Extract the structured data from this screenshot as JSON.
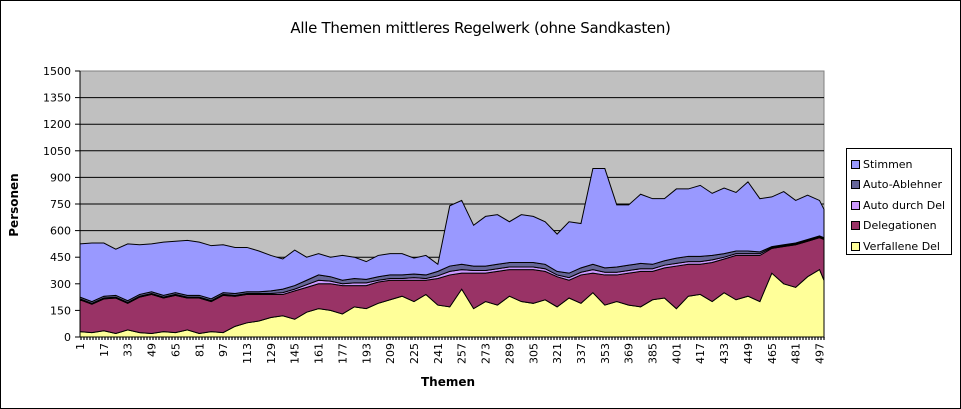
{
  "chart_data": {
    "type": "area",
    "stacked": true,
    "title": "Alle Themen mittleres Regelwerk (ohne Sandkasten)",
    "xlabel": "Themen",
    "ylabel": "Personen",
    "ylim": [
      0,
      1500
    ],
    "yticks": [
      0,
      150,
      300,
      450,
      600,
      750,
      900,
      1050,
      1200,
      1350,
      1500
    ],
    "xticks": [
      1,
      17,
      33,
      49,
      65,
      81,
      97,
      113,
      129,
      145,
      161,
      177,
      193,
      209,
      225,
      241,
      257,
      273,
      289,
      305,
      321,
      337,
      353,
      369,
      385,
      401,
      417,
      433,
      449,
      465,
      481,
      497
    ],
    "xrange": [
      1,
      500
    ],
    "grid": true,
    "plot_background": "#c0c0c0",
    "legend_position": "right",
    "x": [
      1,
      9,
      17,
      25,
      33,
      41,
      49,
      57,
      65,
      73,
      81,
      89,
      97,
      105,
      113,
      121,
      129,
      137,
      145,
      153,
      161,
      169,
      177,
      185,
      193,
      201,
      209,
      217,
      225,
      233,
      241,
      249,
      257,
      265,
      273,
      281,
      289,
      297,
      305,
      313,
      321,
      329,
      337,
      345,
      353,
      361,
      369,
      377,
      385,
      393,
      401,
      409,
      417,
      425,
      433,
      441,
      449,
      457,
      465,
      473,
      481,
      489,
      497,
      500
    ],
    "series": [
      {
        "name": "Verfallene Del",
        "color": "#ffff99",
        "values": [
          30,
          25,
          35,
          20,
          40,
          25,
          20,
          30,
          25,
          40,
          20,
          30,
          25,
          60,
          80,
          90,
          110,
          120,
          100,
          140,
          160,
          150,
          130,
          170,
          160,
          190,
          210,
          230,
          200,
          240,
          180,
          170,
          270,
          160,
          200,
          180,
          230,
          200,
          190,
          210,
          170,
          220,
          190,
          250,
          180,
          200,
          180,
          170,
          210,
          220,
          160,
          230,
          240,
          200,
          250,
          210,
          230,
          200,
          360,
          300,
          280,
          340,
          380,
          320
        ]
      },
      {
        "name": "Delegationen",
        "color": "#993366",
        "values": [
          180,
          160,
          180,
          200,
          150,
          200,
          220,
          190,
          210,
          180,
          200,
          170,
          210,
          170,
          160,
          150,
          130,
          120,
          160,
          140,
          140,
          150,
          160,
          120,
          130,
          120,
          110,
          90,
          120,
          80,
          150,
          180,
          90,
          200,
          160,
          190,
          150,
          180,
          190,
          160,
          170,
          100,
          160,
          110,
          170,
          150,
          180,
          200,
          160,
          170,
          240,
          180,
          170,
          220,
          190,
          250,
          230,
          260,
          140,
          210,
          240,
          200,
          180,
          230
        ]
      },
      {
        "name": "Auto durch Del",
        "color": "#cc99ff",
        "values": [
          5,
          5,
          5,
          5,
          5,
          5,
          5,
          5,
          5,
          5,
          5,
          5,
          5,
          5,
          5,
          5,
          5,
          10,
          10,
          15,
          20,
          15,
          10,
          15,
          15,
          10,
          10,
          10,
          15,
          10,
          15,
          20,
          20,
          15,
          15,
          15,
          15,
          15,
          15,
          15,
          10,
          15,
          15,
          20,
          15,
          15,
          15,
          15,
          15,
          15,
          15,
          15,
          15,
          15,
          10,
          10,
          10,
          10,
          5,
          5,
          5,
          5,
          5,
          5
        ]
      },
      {
        "name": "Auto-Ablehner",
        "color": "#666699",
        "values": [
          10,
          10,
          10,
          10,
          10,
          10,
          10,
          10,
          10,
          10,
          10,
          10,
          10,
          10,
          10,
          10,
          15,
          20,
          20,
          25,
          30,
          25,
          20,
          25,
          20,
          20,
          20,
          20,
          20,
          20,
          25,
          30,
          30,
          25,
          25,
          25,
          25,
          25,
          25,
          25,
          20,
          25,
          25,
          30,
          25,
          30,
          30,
          30,
          25,
          25,
          30,
          30,
          30,
          25,
          20,
          15,
          15,
          10,
          5,
          5,
          5,
          5,
          5,
          5
        ]
      },
      {
        "name": "Stimmen",
        "color": "#9999ff",
        "values": [
          300,
          330,
          300,
          260,
          320,
          280,
          270,
          300,
          290,
          310,
          300,
          300,
          270,
          260,
          250,
          230,
          200,
          170,
          200,
          130,
          120,
          110,
          140,
          120,
          100,
          120,
          120,
          120,
          90,
          110,
          40,
          340,
          360,
          230,
          280,
          280,
          230,
          270,
          260,
          240,
          210,
          290,
          250,
          540,
          560,
          350,
          340,
          390,
          370,
          350,
          390,
          380,
          400,
          350,
          370,
          330,
          390,
          300,
          280,
          300,
          240,
          250,
          200,
          160
        ]
      }
    ]
  },
  "legend": {
    "items": [
      {
        "label": "Stimmen",
        "color": "#9999ff"
      },
      {
        "label": "Auto-Ablehner",
        "color": "#666699"
      },
      {
        "label": "Auto durch Del",
        "color": "#cc99ff"
      },
      {
        "label": "Delegationen",
        "color": "#993366"
      },
      {
        "label": "Verfallene Del",
        "color": "#ffff99"
      }
    ]
  }
}
